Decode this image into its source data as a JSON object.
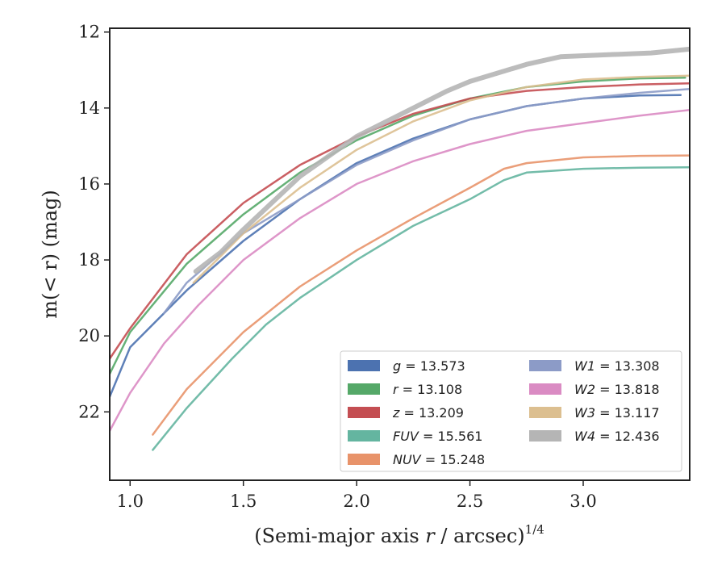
{
  "chart_data": {
    "type": "line",
    "title": "",
    "xlabel_main": "(Semi-major axis ",
    "xlabel_var": "r",
    "xlabel_tail": " / arcsec)",
    "xlabel_exp": "1/4",
    "ylabel_main": "m(< r) (mag)",
    "xlim": [
      0.91,
      3.47
    ],
    "ylim": [
      23.8,
      11.9
    ],
    "y_inverted": true,
    "xticks": [
      1.0,
      1.5,
      2.0,
      2.5,
      3.0
    ],
    "xtick_labels": [
      "1.0",
      "1.5",
      "2.0",
      "2.5",
      "3.0"
    ],
    "yticks": [
      12,
      14,
      16,
      18,
      20,
      22
    ],
    "ytick_labels": [
      "12",
      "14",
      "16",
      "18",
      "20",
      "22"
    ],
    "grid": false,
    "legend_position": "lower-right",
    "series": [
      {
        "band": "g",
        "label": "g = 13.573",
        "color": "#4c72b0",
        "width": 2.5,
        "x": [
          0.91,
          1.0,
          1.25,
          1.5,
          1.75,
          2.0,
          2.25,
          2.5,
          2.75,
          3.0,
          3.25,
          3.43
        ],
        "y": [
          21.6,
          20.3,
          18.8,
          17.5,
          16.4,
          15.45,
          14.8,
          14.3,
          13.95,
          13.75,
          13.67,
          13.66
        ]
      },
      {
        "band": "r",
        "label": "r = 13.108",
        "color": "#55a868",
        "width": 2.5,
        "x": [
          0.91,
          1.0,
          1.25,
          1.5,
          1.75,
          2.0,
          2.25,
          2.5,
          2.75,
          3.0,
          3.25,
          3.45
        ],
        "y": [
          21.0,
          19.9,
          18.1,
          16.8,
          15.7,
          14.85,
          14.2,
          13.75,
          13.45,
          13.3,
          13.22,
          13.2
        ]
      },
      {
        "band": "z",
        "label": "z = 13.209",
        "color": "#c44e52",
        "width": 2.5,
        "x": [
          0.91,
          1.0,
          1.25,
          1.5,
          1.75,
          2.0,
          2.25,
          2.5,
          2.75,
          3.0,
          3.25,
          3.47
        ],
        "y": [
          20.6,
          19.8,
          17.85,
          16.5,
          15.5,
          14.75,
          14.15,
          13.75,
          13.55,
          13.45,
          13.38,
          13.35
        ]
      },
      {
        "band": "FUV",
        "label": "FUV = 15.561",
        "color": "#64b5a0",
        "width": 2.5,
        "x": [
          1.1,
          1.25,
          1.45,
          1.6,
          1.75,
          2.0,
          2.25,
          2.5,
          2.65,
          2.75,
          3.0,
          3.25,
          3.47
        ],
        "y": [
          23.0,
          21.9,
          20.6,
          19.7,
          19.0,
          18.0,
          17.1,
          16.4,
          15.9,
          15.7,
          15.6,
          15.57,
          15.56
        ]
      },
      {
        "band": "NUV",
        "label": "NUV = 15.248",
        "color": "#e8936a",
        "width": 2.5,
        "x": [
          1.1,
          1.25,
          1.5,
          1.75,
          2.0,
          2.25,
          2.5,
          2.65,
          2.75,
          3.0,
          3.25,
          3.47
        ],
        "y": [
          22.6,
          21.4,
          19.9,
          18.7,
          17.75,
          16.9,
          16.1,
          15.6,
          15.45,
          15.3,
          15.26,
          15.25
        ]
      },
      {
        "band": "W1",
        "label": "W1 = 13.308",
        "color": "#8c9bc7",
        "width": 2.5,
        "x": [
          1.15,
          1.25,
          1.5,
          1.75,
          2.0,
          2.25,
          2.5,
          2.75,
          3.0,
          3.25,
          3.47
        ],
        "y": [
          19.4,
          18.6,
          17.3,
          16.4,
          15.5,
          14.85,
          14.3,
          13.95,
          13.75,
          13.6,
          13.5
        ]
      },
      {
        "band": "W2",
        "label": "W2 = 13.818",
        "color": "#da8bc3",
        "width": 2.5,
        "x": [
          0.91,
          1.0,
          1.15,
          1.3,
          1.5,
          1.75,
          2.0,
          2.25,
          2.5,
          2.75,
          3.0,
          3.25,
          3.47
        ],
        "y": [
          22.5,
          21.5,
          20.2,
          19.2,
          18.0,
          16.9,
          16.0,
          15.4,
          14.95,
          14.6,
          14.4,
          14.2,
          14.05
        ]
      },
      {
        "band": "W3",
        "label": "W3 = 13.117",
        "color": "#dcbf90",
        "width": 2.5,
        "x": [
          1.28,
          1.4,
          1.5,
          1.75,
          2.0,
          2.25,
          2.5,
          2.75,
          3.0,
          3.25,
          3.47
        ],
        "y": [
          18.6,
          17.9,
          17.3,
          16.1,
          15.1,
          14.35,
          13.8,
          13.45,
          13.25,
          13.18,
          13.15
        ]
      },
      {
        "band": "W4",
        "label": "W4 = 12.436",
        "color": "#b5b5b5",
        "width": 6,
        "x": [
          1.29,
          1.4,
          1.5,
          1.75,
          2.0,
          2.25,
          2.4,
          2.5,
          2.75,
          2.9,
          3.1,
          3.3,
          3.47
        ],
        "y": [
          18.3,
          17.8,
          17.2,
          15.8,
          14.75,
          14.0,
          13.55,
          13.3,
          12.85,
          12.65,
          12.6,
          12.55,
          12.45
        ]
      }
    ],
    "legend": [
      {
        "var": "g",
        "value": "= 13.573",
        "color": "#4c72b0"
      },
      {
        "var": "r",
        "value": "= 13.108",
        "color": "#55a868"
      },
      {
        "var": "z",
        "value": "= 13.209",
        "color": "#c44e52"
      },
      {
        "var": "FUV",
        "value": "= 15.561",
        "color": "#64b5a0"
      },
      {
        "var": "NUV",
        "value": "= 15.248",
        "color": "#e8936a"
      },
      {
        "var": "W1",
        "value": "= 13.308",
        "color": "#8c9bc7"
      },
      {
        "var": "W2",
        "value": "= 13.818",
        "color": "#da8bc3"
      },
      {
        "var": "W3",
        "value": "= 13.117",
        "color": "#dcbf90"
      },
      {
        "var": "W4",
        "value": "= 12.436",
        "color": "#b5b5b5"
      }
    ]
  }
}
